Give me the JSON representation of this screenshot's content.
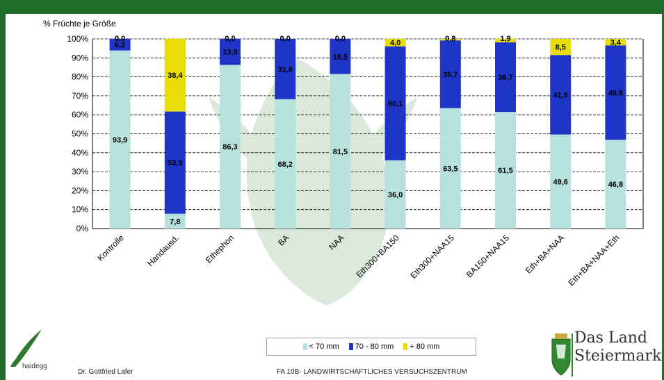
{
  "colors": {
    "frame": "#1f6b2a",
    "lt70": "#b7e1dc",
    "70_80": "#1f35c8",
    "gt80": "#e8dc0a",
    "grid": "#000000"
  },
  "chart_data": {
    "type": "bar",
    "stacked": true,
    "percent": true,
    "title": "% Früchte je Größe",
    "ylim": [
      0,
      100
    ],
    "yticks": [
      "0%",
      "10%",
      "20%",
      "30%",
      "40%",
      "50%",
      "60%",
      "70%",
      "80%",
      "90%",
      "100%"
    ],
    "grid": true,
    "legend_position": "bottom",
    "categories": [
      "Kontrolle",
      "Handausd.",
      "Ethephon",
      "BA",
      "NAA",
      "Eth300+BA150",
      "Eth300+NAA15",
      "BA150+NAA15",
      "Eth+BA+NAA",
      "Eth+BA+NAA+Eth"
    ],
    "series": [
      {
        "name": "< 70 mm",
        "values": [
          93.9,
          7.8,
          86.3,
          68.2,
          81.5,
          36.0,
          63.5,
          61.5,
          49.6,
          46.8
        ],
        "labels": [
          "93,9",
          "7,8",
          "86,3",
          "68,2",
          "81,5",
          "36,0",
          "63,5",
          "61,5",
          "49,6",
          "46,8"
        ]
      },
      {
        "name": "70 - 80 mm",
        "values": [
          6.2,
          53.9,
          13.8,
          31.8,
          18.5,
          60.1,
          35.7,
          36.7,
          41.9,
          49.8
        ],
        "labels": [
          "6,2",
          "53,9",
          "13,8",
          "31,8",
          "18,5",
          "60,1",
          "35,7",
          "36,7",
          "41,9",
          "49,8"
        ]
      },
      {
        "name": "+ 80 mm",
        "values": [
          0.0,
          38.4,
          0.0,
          0.0,
          0.0,
          4.0,
          0.8,
          1.9,
          8.5,
          3.4
        ],
        "labels": [
          "0,0",
          "38,4",
          "0,0",
          "0,0",
          "0,0",
          "4,0",
          "0,8",
          "1,9",
          "8,5",
          "3,4"
        ]
      }
    ]
  },
  "footer": {
    "author": "Dr. Gottfried Lafer",
    "institution": "FA 10B- LANDWIRTSCHAFTLICHES VERSUCHSZENTRUM",
    "logo_left_text": "haidegg",
    "logo_right_line1": "Das Land",
    "logo_right_line2": "Steiermark"
  }
}
